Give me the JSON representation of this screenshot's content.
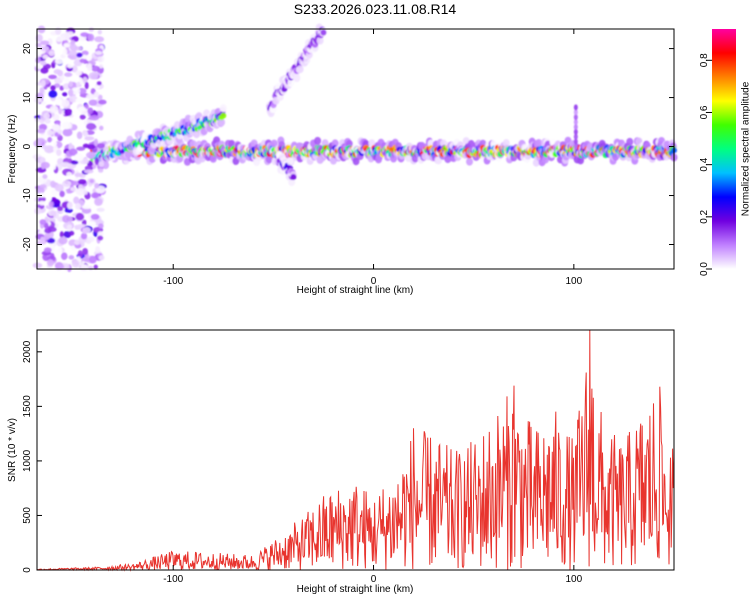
{
  "title": "S233.2026.023.11.08.R14",
  "chart_data": [
    {
      "type": "heatmap",
      "xlabel": "Height of straight line (km)",
      "ylabel": "Frequency (Hz)",
      "xlim": [
        -168,
        150
      ],
      "ylim": [
        -25,
        24
      ],
      "xticks": [
        -100,
        0,
        100
      ],
      "yticks": [
        -20,
        -10,
        0,
        10,
        20
      ],
      "colorbar": {
        "label": "Normalized spectral amplitude",
        "range": [
          0,
          0.92
        ],
        "ticks": [
          0.0,
          0.2,
          0.4,
          0.6,
          0.8
        ],
        "colors": [
          "#ffffff",
          "#c080ff",
          "#7000e0",
          "#0000ff",
          "#00c0ff",
          "#00ff80",
          "#40ff00",
          "#ffff00",
          "#ff8000",
          "#ff0000",
          "#ff00a0"
        ]
      },
      "features": [
        {
          "name": "main-band",
          "x_start": -140,
          "x_end": 150,
          "freq_hz": -1.0,
          "peak_amplitude": 0.9
        },
        {
          "name": "rising-segment",
          "x_start": -140,
          "x_end": -75,
          "freq_start_hz": -2.5,
          "freq_end_hz": 6.0,
          "peak_amplitude": 0.6
        },
        {
          "name": "steep-arc",
          "x_start": -52,
          "x_end": -25,
          "freq_start_hz": 8.0,
          "freq_end_hz": 24.0,
          "peak_amplitude": 0.2
        },
        {
          "name": "descending-segment",
          "x_start": -48,
          "x_end": -40,
          "freq_start_hz": -2.0,
          "freq_end_hz": -6.0,
          "peak_amplitude": 0.25
        },
        {
          "name": "spike-100km",
          "x": 101,
          "freq_start_hz": 0.0,
          "freq_end_hz": 8.0,
          "peak_amplitude": 0.15
        },
        {
          "name": "noise-region",
          "x_start": -168,
          "x_end": -135,
          "freq_start_hz": -25,
          "freq_end_hz": 24,
          "peak_amplitude": 0.2
        }
      ]
    },
    {
      "type": "line",
      "xlabel": "Height of straight line (km)",
      "ylabel": "SNR (10 * v/v)",
      "xlim": [
        -168,
        150
      ],
      "ylim": [
        0,
        2200
      ],
      "xticks": [
        -100,
        0,
        100
      ],
      "yticks": [
        0,
        500,
        1000,
        1500,
        2000
      ],
      "color": "#e8342e",
      "envelope": {
        "x": [
          -168,
          -140,
          -120,
          -100,
          -80,
          -60,
          -45,
          -35,
          -25,
          -10,
          0,
          10,
          20,
          30,
          40,
          50,
          60,
          70,
          80,
          90,
          100,
          108,
          115,
          125,
          140,
          150
        ],
        "y": [
          10,
          25,
          60,
          180,
          160,
          140,
          350,
          500,
          700,
          850,
          700,
          900,
          1300,
          1250,
          1100,
          1200,
          1450,
          1700,
          1300,
          1500,
          1200,
          2200,
          1300,
          1200,
          1680,
          1100
        ]
      },
      "peaks": [
        {
          "x": 108,
          "y": 2200
        },
        {
          "x": 70,
          "y": 1690
        },
        {
          "x": 143,
          "y": 1680
        },
        {
          "x": 20,
          "y": 1300
        }
      ]
    }
  ]
}
